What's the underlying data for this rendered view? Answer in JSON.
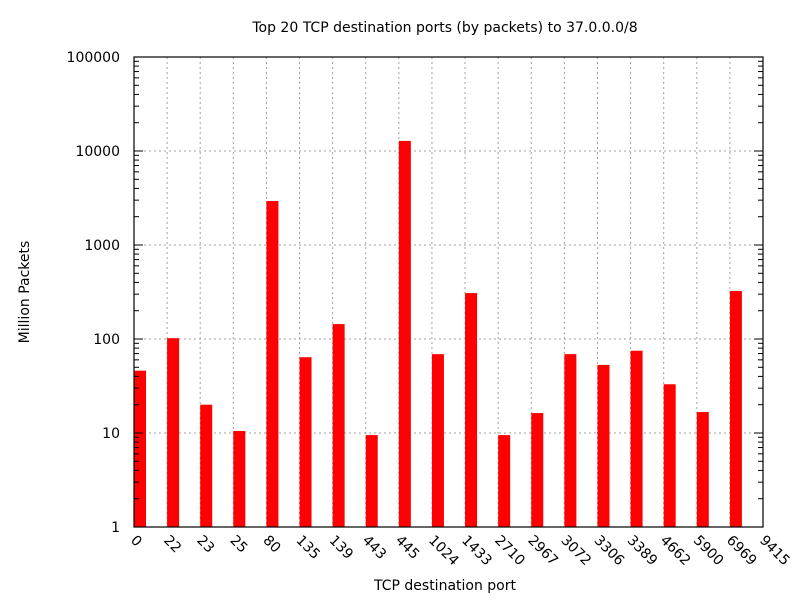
{
  "chart_data": {
    "type": "bar",
    "title": "Top 20 TCP destination ports (by packets) to 37.0.0.0/8",
    "xlabel": "TCP destination port",
    "ylabel": "Million Packets",
    "yscale": "log",
    "ylim": [
      1,
      100000
    ],
    "yticks": [
      "1",
      "10",
      "100",
      "1000",
      "10000",
      "100000"
    ],
    "grid": true,
    "bar_color": "#ff0000",
    "categories": [
      "0",
      "22",
      "23",
      "25",
      "80",
      "135",
      "139",
      "443",
      "445",
      "1024",
      "1433",
      "2710",
      "2967",
      "3072",
      "3306",
      "3389",
      "4662",
      "5900",
      "6969",
      "9415"
    ],
    "values": [
      46,
      102,
      20,
      10.5,
      2940,
      64,
      144,
      9.5,
      12800,
      69,
      308,
      9.5,
      16.3,
      69,
      53,
      75,
      33,
      16.7,
      324,
      null
    ]
  }
}
